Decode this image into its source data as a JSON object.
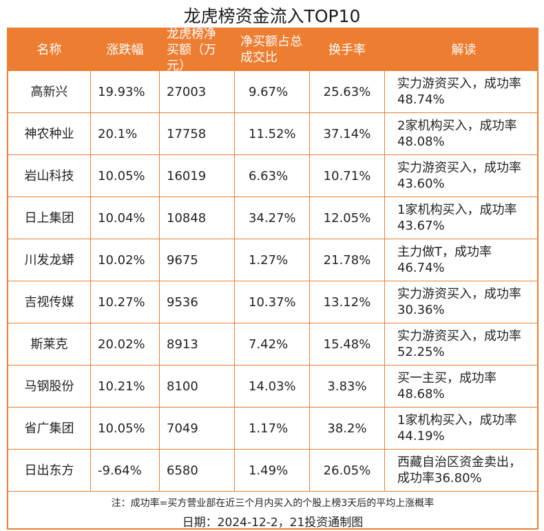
{
  "title": "龙虎榜资金流入TOP10",
  "columns": [
    "名称",
    "涨跌幅",
    "龙虎榜净买额（万元）",
    "净买额占总成交比",
    "换手率",
    "解读"
  ],
  "rows": [
    [
      "高新兴",
      "19.93%",
      "27003",
      "9.67%",
      "25.63%",
      "实力游资买入，成功率48.74%"
    ],
    [
      "神农种业",
      "20.1%",
      "17758",
      "11.52%",
      "37.14%",
      "2家机构买入，成功率48.08%"
    ],
    [
      "岩山科技",
      "10.05%",
      "16019",
      "6.63%",
      "10.71%",
      "实力游资买入，成功率43.60%"
    ],
    [
      "日上集团",
      "10.04%",
      "10848",
      "34.27%",
      "12.05%",
      "1家机构买入，成功率43.67%"
    ],
    [
      "川发龙蟒",
      "10.02%",
      "9675",
      "1.27%",
      "21.78%",
      "主力做T，成功率46.74%"
    ],
    [
      "吉视传媒",
      "10.27%",
      "9536",
      "10.37%",
      "13.12%",
      "实力游资买入，成功率30.36%"
    ],
    [
      "斯莱克",
      "20.02%",
      "8913",
      "7.42%",
      "15.48%",
      "实力游资买入，成功率52.25%"
    ],
    [
      "马钢股份",
      "10.21%",
      "8100",
      "14.03%",
      "3.83%",
      "买一主买，成功率48.68%"
    ],
    [
      "省广集团",
      "10.05%",
      "7049",
      "1.17%",
      "38.2%",
      "1家机构买入，成功率44.19%"
    ],
    [
      "日出东方",
      "-9.64%",
      "6580",
      "1.49%",
      "26.05%",
      "西藏自治区资金卖出，成功率36.80%"
    ]
  ],
  "note": "注：成功率=买方营业部在近三个月内买入的个股上榜3天后的平均上涨概率",
  "date_credit": "日期：2024-12-2，21投资通制图",
  "colors": {
    "accent": "#ed7d31"
  }
}
